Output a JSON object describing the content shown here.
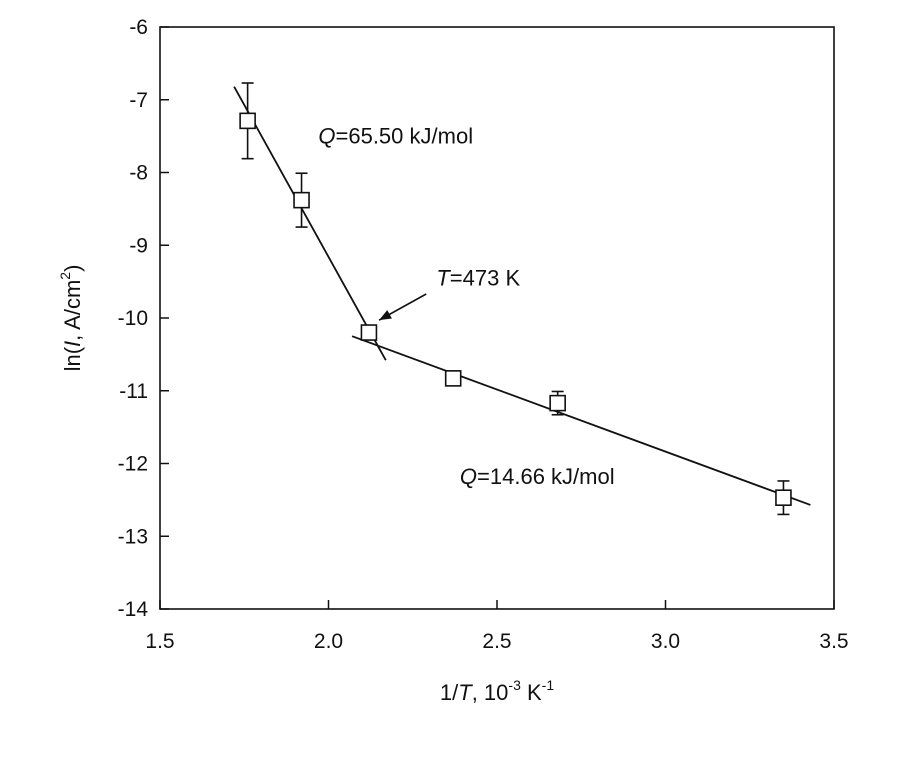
{
  "chart_data": {
    "type": "scatter",
    "xlim": [
      1.5,
      3.5
    ],
    "ylim": [
      -14,
      -6
    ],
    "x_ticks": [
      "1.5",
      "2.0",
      "2.5",
      "3.0",
      "3.5"
    ],
    "y_ticks": [
      "-6",
      "-7",
      "-8",
      "-9",
      "-10",
      "-11",
      "-12",
      "-13",
      "-14"
    ],
    "xlabel": {
      "prefix": "1/",
      "var": "T",
      "mid": ", 10",
      "sup1": "-3",
      "unit": " K",
      "sup2": "-1"
    },
    "ylabel": {
      "prefix": "ln(",
      "var": "I",
      "mid": ", A/cm",
      "sup": "2",
      "suffix": ")"
    },
    "grid": false,
    "points": [
      {
        "x": 1.76,
        "y": -7.29,
        "err": 0.52
      },
      {
        "x": 1.92,
        "y": -8.38,
        "err": 0.37
      },
      {
        "x": 2.12,
        "y": -10.2,
        "err": 0.08
      },
      {
        "x": 2.37,
        "y": -10.83,
        "err": 0.1
      },
      {
        "x": 2.68,
        "y": -11.17,
        "err": 0.16
      },
      {
        "x": 3.35,
        "y": -12.47,
        "err": 0.23
      }
    ],
    "fit_lines": [
      {
        "x": [
          1.72,
          2.17
        ],
        "y": [
          -6.82,
          -10.58
        ]
      },
      {
        "x": [
          2.07,
          3.43
        ],
        "y": [
          -10.25,
          -12.57
        ]
      }
    ],
    "annotations": [
      {
        "id": "q-high",
        "var": "Q",
        "text": "=65.50 kJ/mol",
        "x": 1.97,
        "y": -7.6
      },
      {
        "id": "t-transition",
        "var": "T",
        "text": "=473 K",
        "x": 2.32,
        "y": -9.55
      },
      {
        "id": "q-low",
        "var": "Q",
        "text": "=14.66 kJ/mol",
        "x": 2.39,
        "y": -12.28
      }
    ],
    "arrow": {
      "from": [
        2.29,
        -9.67
      ],
      "to": [
        2.15,
        -10.03
      ]
    }
  }
}
